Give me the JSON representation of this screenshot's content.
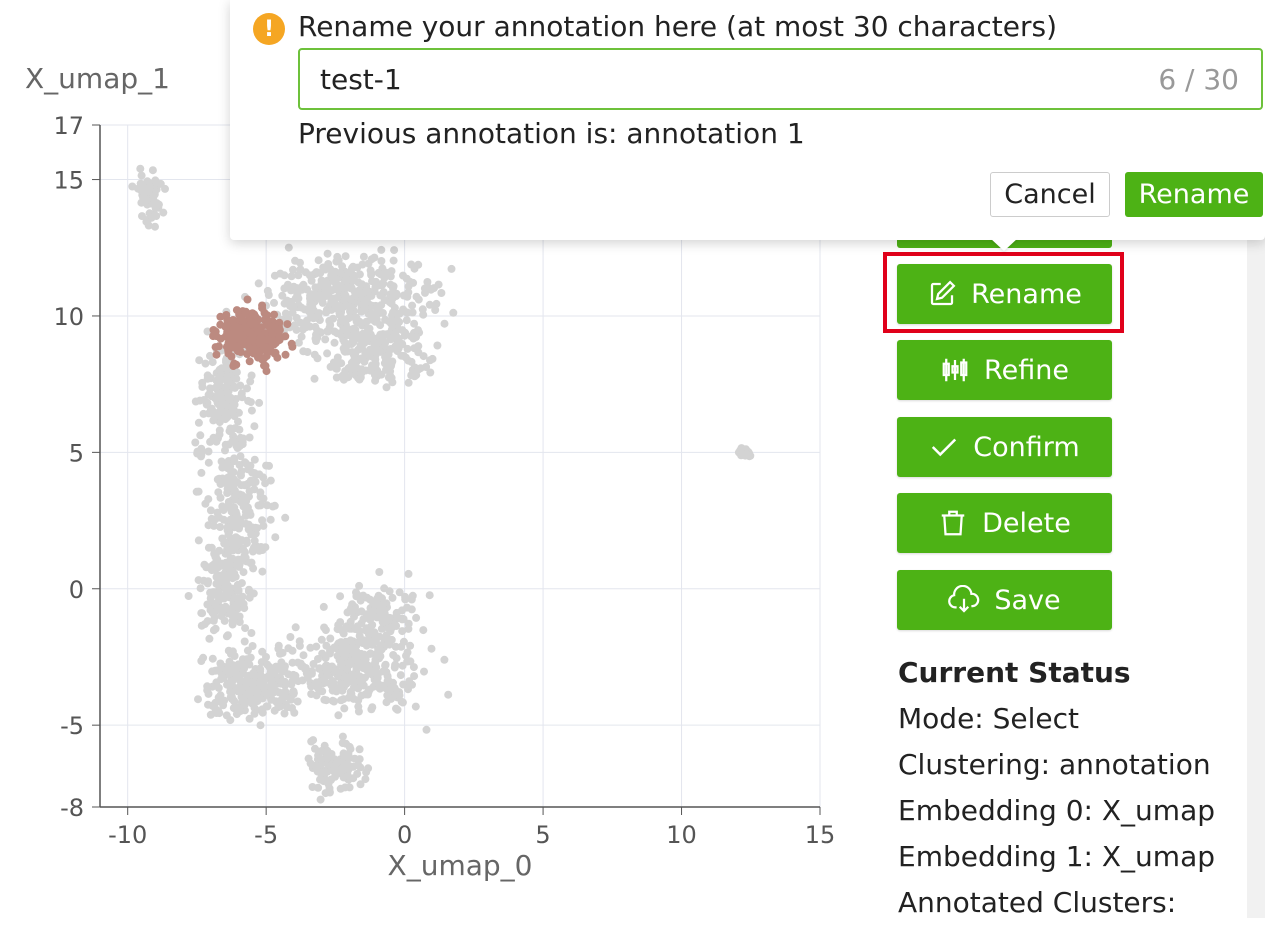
{
  "plot": {
    "xlabel": "X_umap_0",
    "ylabel": "X_umap_1",
    "x_ticks": [
      "-10",
      "-5",
      "0",
      "5",
      "10",
      "15"
    ],
    "y_ticks": [
      "17",
      "15",
      "10",
      "5",
      "0",
      "-5",
      "-8"
    ],
    "xlim": [
      -11,
      15
    ],
    "ylim": [
      -8,
      17
    ],
    "point_color": "#d3d3d3",
    "selected_color": "#bc8a80"
  },
  "chart_data": {
    "type": "scatter",
    "xlabel": "X_umap_0",
    "ylabel": "X_umap_1",
    "xlim": [
      -11,
      15
    ],
    "ylim": [
      -8,
      17
    ],
    "grid": true,
    "clusters": [
      {
        "role": "unselected",
        "center": [
          -9.2,
          14.3
        ],
        "spread": [
          0.4,
          0.8
        ]
      },
      {
        "role": "unselected",
        "center": [
          -2.0,
          10.5
        ],
        "spread": [
          2.5,
          1.3
        ]
      },
      {
        "role": "unselected",
        "center": [
          -1.0,
          8.5
        ],
        "spread": [
          1.5,
          1.0
        ]
      },
      {
        "role": "unselected",
        "center": [
          -6.5,
          7.0
        ],
        "spread": [
          0.8,
          1.8
        ]
      },
      {
        "role": "unselected",
        "center": [
          -6.0,
          3.0
        ],
        "spread": [
          1.0,
          2.0
        ]
      },
      {
        "role": "unselected",
        "center": [
          -6.5,
          0.0
        ],
        "spread": [
          0.8,
          1.5
        ]
      },
      {
        "role": "unselected",
        "center": [
          -5.5,
          -3.5
        ],
        "spread": [
          1.5,
          1.0
        ]
      },
      {
        "role": "unselected",
        "center": [
          -2.0,
          -3.0
        ],
        "spread": [
          2.0,
          1.2
        ]
      },
      {
        "role": "unselected",
        "center": [
          -1.0,
          -1.0
        ],
        "spread": [
          1.2,
          1.0
        ]
      },
      {
        "role": "unselected",
        "center": [
          -2.5,
          -6.5
        ],
        "spread": [
          0.8,
          0.8
        ]
      },
      {
        "role": "unselected",
        "center": [
          12.3,
          5.0
        ],
        "spread": [
          0.2,
          0.15
        ]
      },
      {
        "role": "selected",
        "center": [
          -5.5,
          9.3
        ],
        "spread": [
          1.0,
          0.8
        ]
      }
    ]
  },
  "popover": {
    "title": "Rename your annotation here (at most 30 characters)",
    "input_value": "test-1",
    "count": "6 / 30",
    "previous": "Previous annotation is: annotation 1",
    "cancel_label": "Cancel",
    "rename_label": "Rename"
  },
  "buttons": {
    "rename": "Rename",
    "refine": "Refine",
    "confirm": "Confirm",
    "delete": "Delete",
    "save": "Save"
  },
  "status": {
    "heading": "Current Status",
    "mode": "Mode: Select",
    "clustering": "Clustering: annotation",
    "embedding0": "Embedding 0: X_umap",
    "embedding1": "Embedding 1: X_umap",
    "annotated": "Annotated Clusters:"
  },
  "colors": {
    "accent": "#4db215",
    "highlight": "#e0001a",
    "warning": "#f5a623"
  }
}
